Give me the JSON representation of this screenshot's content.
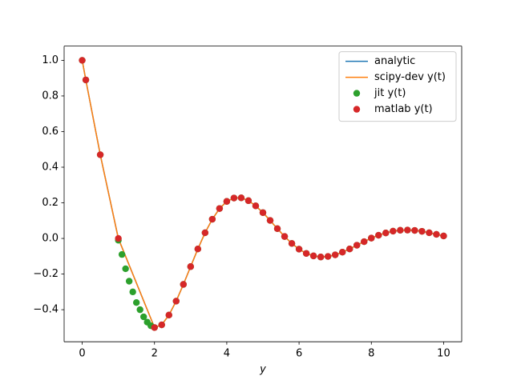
{
  "chart_data": {
    "type": "line",
    "xlabel": "y",
    "xlim": [
      -0.5,
      10.5
    ],
    "ylim": [
      -0.58,
      1.08
    ],
    "xticks": [
      0,
      2,
      4,
      6,
      8,
      10
    ],
    "yticks": [
      {
        "value": -0.4,
        "label": "−0.4"
      },
      {
        "value": -0.2,
        "label": "−0.2"
      },
      {
        "value": 0,
        "label": "0.0"
      },
      0.2,
      0.4,
      0.6,
      0.8,
      {
        "value": 1,
        "label": "1.0"
      }
    ],
    "legend": "upper right",
    "series": [
      {
        "name": "analytic",
        "color": "#1f77b4",
        "kind": "line",
        "x": [
          0,
          0.1,
          0.5,
          1,
          2,
          2.2,
          2.4,
          2.6,
          2.8,
          3,
          3.2,
          3.4,
          3.6,
          3.8,
          4,
          4.2,
          4.4,
          4.6,
          4.8,
          5,
          5.2,
          5.4,
          5.6,
          5.8,
          6,
          6.2,
          6.4,
          6.6,
          6.8,
          7,
          7.2,
          7.4,
          7.6,
          7.8,
          8,
          8.2,
          8.4,
          8.6,
          8.8,
          9,
          9.2,
          9.4,
          9.6,
          9.8,
          10
        ],
        "values": [
          1,
          0.89,
          0.47,
          0,
          -0.5,
          -0.485,
          -0.43,
          -0.352,
          -0.258,
          -0.158,
          -0.059,
          0.032,
          0.108,
          0.168,
          0.208,
          0.227,
          0.228,
          0.212,
          0.183,
          0.145,
          0.101,
          0.055,
          0.011,
          -0.028,
          -0.06,
          -0.084,
          -0.098,
          -0.104,
          -0.101,
          -0.092,
          -0.077,
          -0.059,
          -0.038,
          -0.018,
          0.002,
          0.018,
          0.031,
          0.041,
          0.046,
          0.047,
          0.045,
          0.04,
          0.032,
          0.023,
          0.014
        ]
      },
      {
        "name": "scipy-dev y(t)",
        "color": "#ff7f0e",
        "kind": "line",
        "x": [
          0,
          0.1,
          0.5,
          1,
          2,
          2.2,
          2.4,
          2.6,
          2.8,
          3,
          3.2,
          3.4,
          3.6,
          3.8,
          4,
          4.2,
          4.4,
          4.6,
          4.8,
          5,
          5.2,
          5.4,
          5.6,
          5.8,
          6,
          6.2,
          6.4,
          6.6,
          6.8,
          7,
          7.2,
          7.4,
          7.6,
          7.8,
          8,
          8.2,
          8.4,
          8.6,
          8.8,
          9,
          9.2,
          9.4,
          9.6,
          9.8,
          10
        ],
        "values": [
          1,
          0.89,
          0.47,
          0,
          -0.5,
          -0.485,
          -0.43,
          -0.352,
          -0.258,
          -0.158,
          -0.059,
          0.032,
          0.108,
          0.168,
          0.208,
          0.227,
          0.228,
          0.212,
          0.183,
          0.145,
          0.101,
          0.055,
          0.011,
          -0.028,
          -0.06,
          -0.084,
          -0.098,
          -0.104,
          -0.101,
          -0.092,
          -0.077,
          -0.059,
          -0.038,
          -0.018,
          0.002,
          0.018,
          0.031,
          0.041,
          0.046,
          0.047,
          0.045,
          0.04,
          0.032,
          0.023,
          0.014
        ]
      },
      {
        "name": "jit y(t)",
        "color": "#2ca02c",
        "kind": "scatter",
        "x": [
          0,
          0.1,
          0.5,
          1,
          1.1,
          1.2,
          1.3,
          1.4,
          1.5,
          1.6,
          1.7,
          1.8,
          1.9,
          2,
          2.2,
          2.4,
          2.6,
          2.8,
          3,
          3.2,
          3.4,
          3.6,
          3.8,
          4,
          4.2,
          4.4,
          4.6,
          4.8,
          5,
          5.2,
          5.4,
          5.6,
          5.8,
          6,
          6.2,
          6.4,
          6.6,
          6.8,
          7,
          7.2,
          7.4,
          7.6,
          7.8,
          8,
          8.2,
          8.4,
          8.6,
          8.8,
          9,
          9.2,
          9.4,
          9.6,
          9.8,
          10
        ],
        "values": [
          1,
          0.89,
          0.47,
          -0.01,
          -0.09,
          -0.17,
          -0.24,
          -0.3,
          -0.36,
          -0.4,
          -0.44,
          -0.47,
          -0.49,
          -0.5,
          -0.485,
          -0.43,
          -0.352,
          -0.258,
          -0.158,
          -0.059,
          0.032,
          0.108,
          0.168,
          0.208,
          0.227,
          0.228,
          0.212,
          0.183,
          0.145,
          0.101,
          0.055,
          0.011,
          -0.028,
          -0.06,
          -0.084,
          -0.098,
          -0.104,
          -0.101,
          -0.092,
          -0.077,
          -0.059,
          -0.038,
          -0.018,
          0.002,
          0.018,
          0.031,
          0.041,
          0.046,
          0.047,
          0.045,
          0.04,
          0.032,
          0.023,
          0.014
        ]
      },
      {
        "name": "matlab y(t)",
        "color": "#d62728",
        "kind": "scatter",
        "x": [
          0,
          0.1,
          0.5,
          1,
          2,
          2.2,
          2.4,
          2.6,
          2.8,
          3,
          3.2,
          3.4,
          3.6,
          3.8,
          4,
          4.2,
          4.4,
          4.6,
          4.8,
          5,
          5.2,
          5.4,
          5.6,
          5.8,
          6,
          6.2,
          6.4,
          6.6,
          6.8,
          7,
          7.2,
          7.4,
          7.6,
          7.8,
          8,
          8.2,
          8.4,
          8.6,
          8.8,
          9,
          9.2,
          9.4,
          9.6,
          9.8,
          10
        ],
        "values": [
          1,
          0.89,
          0.47,
          0,
          -0.5,
          -0.485,
          -0.43,
          -0.352,
          -0.258,
          -0.158,
          -0.059,
          0.032,
          0.108,
          0.168,
          0.208,
          0.227,
          0.228,
          0.212,
          0.183,
          0.145,
          0.101,
          0.055,
          0.011,
          -0.028,
          -0.06,
          -0.084,
          -0.098,
          -0.104,
          -0.101,
          -0.092,
          -0.077,
          -0.059,
          -0.038,
          -0.018,
          0.002,
          0.018,
          0.031,
          0.041,
          0.046,
          0.047,
          0.045,
          0.04,
          0.032,
          0.023,
          0.014
        ]
      }
    ]
  }
}
